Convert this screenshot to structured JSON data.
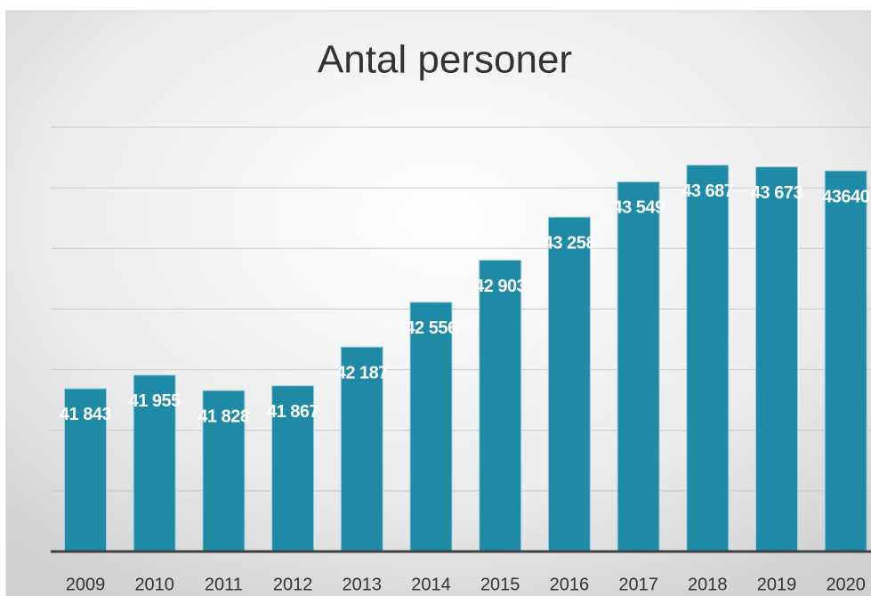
{
  "chart_data": {
    "type": "bar",
    "title": "Antal personer",
    "categories": [
      "2009",
      "2010",
      "2011",
      "2012",
      "2013",
      "2014",
      "2015",
      "2016",
      "2017",
      "2018",
      "2019",
      "2020"
    ],
    "values": [
      41843,
      41955,
      41828,
      41867,
      42187,
      42556,
      42903,
      43258,
      43549,
      43687,
      43673,
      43640
    ],
    "value_labels": [
      "41 843",
      "41 955",
      "41 828",
      "41 867",
      "42 187",
      "42 556",
      "42 903",
      "43 258",
      "43 549",
      "43 687",
      "43 673",
      "43640"
    ],
    "color": "#1e8aa6",
    "ylim": [
      40500,
      44000
    ],
    "yticks": [
      40500,
      41000,
      41500,
      42000,
      42500,
      43000,
      43500,
      44000
    ],
    "grid": true
  }
}
